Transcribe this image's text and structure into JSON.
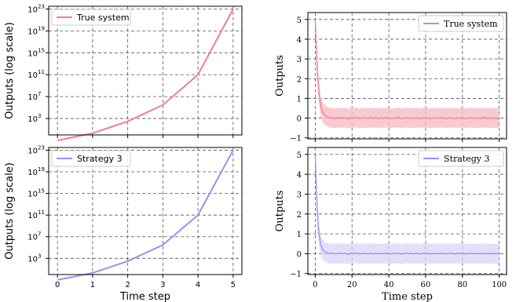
{
  "chart_data": [
    {
      "id": "top-left",
      "type": "line",
      "yscale": "log",
      "xlabel": "",
      "ylabel": "Outputs (log scale)",
      "xlim": [
        -0.25,
        5.25
      ],
      "ylim_exp": [
        0,
        23.5
      ],
      "x_ticks": [
        0,
        1,
        2,
        3,
        4,
        5
      ],
      "x_tick_labels": [
        "",
        "",
        "",
        "",
        "",
        ""
      ],
      "y_tick_exps": [
        3,
        7,
        11,
        15,
        19,
        23
      ],
      "y_tick_labels": [
        "10",
        "10",
        "10",
        "10",
        "10",
        "10"
      ],
      "y_tick_sups": [
        "3",
        "7",
        "11",
        "15",
        "19",
        "23"
      ],
      "grid": true,
      "legend": "top-left",
      "color": "#f07f8c",
      "series": [
        {
          "name": "True system",
          "x": [
            0,
            1,
            2,
            3,
            4,
            5
          ],
          "y": [
            0.1,
            2,
            300,
            300000,
            100000000000,
            1e+23
          ]
        }
      ]
    },
    {
      "id": "bottom-left",
      "type": "line",
      "yscale": "log",
      "xlabel": "Time step",
      "ylabel": "Outputs (log scale)",
      "xlim": [
        -0.25,
        5.25
      ],
      "ylim_exp": [
        0,
        23.5
      ],
      "x_ticks": [
        0,
        1,
        2,
        3,
        4,
        5
      ],
      "x_tick_labels": [
        "0",
        "1",
        "2",
        "3",
        "4",
        "5"
      ],
      "y_tick_exps": [
        3,
        7,
        11,
        15,
        19,
        23
      ],
      "y_tick_labels": [
        "10",
        "10",
        "10",
        "10",
        "10",
        "10"
      ],
      "y_tick_sups": [
        "3",
        "7",
        "11",
        "15",
        "19",
        "23"
      ],
      "grid": true,
      "legend": "top-left",
      "color": "#9b8ff0",
      "series": [
        {
          "name": "Strategy 3",
          "x": [
            0,
            1,
            2,
            3,
            4,
            5
          ],
          "y": [
            0.1,
            2,
            300,
            300000,
            100000000000,
            1e+23
          ]
        }
      ]
    },
    {
      "id": "top-right",
      "type": "line",
      "band": true,
      "yscale": "linear",
      "xlabel": "",
      "ylabel": "Outputs",
      "xlim": [
        -4,
        104
      ],
      "ylim": [
        -1.05,
        5.35
      ],
      "x_ticks": [
        0,
        20,
        40,
        60,
        80,
        100
      ],
      "x_tick_labels": [
        "",
        "",
        "",
        "",
        "",
        ""
      ],
      "y_ticks": [
        -1,
        0,
        1,
        2,
        3,
        4,
        5
      ],
      "y_tick_labels": [
        "−1",
        "0",
        "1",
        "2",
        "3",
        "4",
        "5"
      ],
      "grid": true,
      "legend": "top-right",
      "color": "#f07f8c",
      "band_color": "#f7b8c1",
      "series": [
        {
          "name": "True system",
          "x": [
            0,
            1,
            2,
            3,
            4,
            5,
            6,
            7,
            8,
            9,
            10,
            11,
            12,
            13,
            14,
            15,
            16,
            17,
            18,
            19,
            20,
            21,
            22,
            23,
            24,
            25,
            26,
            27,
            28,
            29,
            30,
            31,
            32,
            33,
            34,
            35,
            36,
            37,
            38,
            39,
            40,
            41,
            42,
            43,
            44,
            45,
            46,
            47,
            48,
            49,
            50,
            51,
            52,
            53,
            54,
            55,
            56,
            57,
            58,
            59,
            60,
            61,
            62,
            63,
            64,
            65,
            66,
            67,
            68,
            69,
            70,
            71,
            72,
            73,
            74,
            75,
            76,
            77,
            78,
            79,
            80,
            81,
            82,
            83,
            84,
            85,
            86,
            87,
            88,
            89,
            90,
            91,
            92,
            93,
            94,
            95,
            96,
            97,
            98,
            99,
            100
          ],
          "y": [
            5.0,
            2.65,
            1.3,
            0.6,
            0.3,
            0.18,
            0.1,
            0.05,
            0.0,
            0.02,
            0.01,
            -0.02,
            0.03,
            0.0,
            0.02,
            -0.01,
            0.03,
            0.0,
            -0.03,
            0.01,
            0.02,
            0.0,
            0.05,
            0.02,
            -0.03,
            0.0,
            0.01,
            0.02,
            0.0,
            -0.02,
            0.03,
            0.01,
            0.0,
            0.04,
            0.0,
            -0.02,
            0.02,
            0.0,
            0.01,
            0.03,
            0.0,
            -0.02,
            0.01,
            0.0,
            0.02,
            0.05,
            0.0,
            -0.02,
            0.0,
            0.03,
            0.01,
            0.0,
            0.02,
            -0.01,
            0.0,
            0.03,
            0.0,
            -0.02,
            0.01,
            0.02,
            0.0,
            0.03,
            -0.02,
            0.0,
            0.01,
            0.02,
            0.0,
            -0.01,
            0.03,
            0.0,
            0.02,
            -0.02,
            0.0,
            0.01,
            0.03,
            0.0,
            -0.02,
            0.01,
            0.0,
            0.02,
            0.03,
            0.0,
            -0.02,
            0.01,
            0.0,
            0.04,
            -0.01,
            0.0,
            0.02,
            0.0,
            -0.02,
            0.05,
            0.0,
            0.01,
            -0.01,
            0.02,
            0.0,
            0.01,
            -0.02,
            0.0,
            0.02
          ],
          "lower": [
            5.0,
            2.0,
            0.8,
            0.1,
            -0.2,
            -0.33,
            -0.4,
            -0.45,
            -0.5,
            -0.48,
            -0.5,
            -0.52,
            -0.47,
            -0.5,
            -0.48,
            -0.51,
            -0.47,
            -0.5,
            -0.53,
            -0.49,
            -0.48,
            -0.5,
            -0.45,
            -0.48,
            -0.53,
            -0.5,
            -0.49,
            -0.48,
            -0.5,
            -0.52,
            -0.47,
            -0.49,
            -0.5,
            -0.46,
            -0.5,
            -0.52,
            -0.48,
            -0.5,
            -0.49,
            -0.47,
            -0.5,
            -0.52,
            -0.49,
            -0.5,
            -0.48,
            -0.45,
            -0.5,
            -0.52,
            -0.5,
            -0.47,
            -0.49,
            -0.5,
            -0.48,
            -0.51,
            -0.5,
            -0.47,
            -0.5,
            -0.52,
            -0.49,
            -0.48,
            -0.5,
            -0.47,
            -0.52,
            -0.5,
            -0.49,
            -0.48,
            -0.5,
            -0.51,
            -0.47,
            -0.5,
            -0.48,
            -0.52,
            -0.5,
            -0.49,
            -0.47,
            -0.5,
            -0.52,
            -0.49,
            -0.5,
            -0.48,
            -0.47,
            -0.5,
            -0.52,
            -0.49,
            -0.5,
            -0.46,
            -0.51,
            -0.5,
            -0.48,
            -0.5,
            -0.52,
            -0.45,
            -0.5,
            -0.49,
            -0.51,
            -0.48,
            -0.5,
            -0.49,
            -0.52,
            -0.5,
            -0.48
          ],
          "upper": [
            5.0,
            3.3,
            1.8,
            1.1,
            0.8,
            0.69,
            0.6,
            0.55,
            0.5,
            0.52,
            0.51,
            0.48,
            0.53,
            0.5,
            0.52,
            0.49,
            0.53,
            0.5,
            0.47,
            0.51,
            0.52,
            0.5,
            0.55,
            0.52,
            0.47,
            0.5,
            0.51,
            0.52,
            0.5,
            0.48,
            0.53,
            0.51,
            0.5,
            0.54,
            0.5,
            0.48,
            0.52,
            0.5,
            0.51,
            0.53,
            0.5,
            0.48,
            0.51,
            0.5,
            0.52,
            0.55,
            0.5,
            0.48,
            0.5,
            0.53,
            0.51,
            0.5,
            0.52,
            0.49,
            0.5,
            0.53,
            0.5,
            0.48,
            0.51,
            0.52,
            0.5,
            0.53,
            0.48,
            0.5,
            0.51,
            0.52,
            0.5,
            0.49,
            0.53,
            0.5,
            0.52,
            0.48,
            0.5,
            0.51,
            0.53,
            0.5,
            0.48,
            0.51,
            0.5,
            0.52,
            0.53,
            0.5,
            0.48,
            0.51,
            0.5,
            0.54,
            0.49,
            0.5,
            0.52,
            0.5,
            0.48,
            0.55,
            0.5,
            0.51,
            0.49,
            0.52,
            0.5,
            0.51,
            0.48,
            0.5,
            0.52
          ]
        }
      ]
    },
    {
      "id": "bottom-right",
      "type": "line",
      "band": true,
      "yscale": "linear",
      "xlabel": "Time step",
      "ylabel": "Outputs",
      "xlim": [
        -4,
        104
      ],
      "ylim": [
        -1.05,
        5.35
      ],
      "x_ticks": [
        0,
        20,
        40,
        60,
        80,
        100
      ],
      "x_tick_labels": [
        "0",
        "20",
        "40",
        "60",
        "80",
        "100"
      ],
      "y_ticks": [
        -1,
        0,
        1,
        2,
        3,
        4,
        5
      ],
      "y_tick_labels": [
        "−1",
        "0",
        "1",
        "2",
        "3",
        "4",
        "5"
      ],
      "grid": true,
      "legend": "top-right",
      "color": "#9b8ff0",
      "band_color": "#d9d3f7",
      "series": [
        {
          "name": "Strategy 3",
          "x": [
            0,
            1,
            2,
            3,
            4,
            5,
            6,
            7,
            8,
            9,
            10,
            11,
            12,
            13,
            14,
            15,
            16,
            17,
            18,
            19,
            20,
            21,
            22,
            23,
            24,
            25,
            26,
            27,
            28,
            29,
            30,
            31,
            32,
            33,
            34,
            35,
            36,
            37,
            38,
            39,
            40,
            41,
            42,
            43,
            44,
            45,
            46,
            47,
            48,
            49,
            50,
            51,
            52,
            53,
            54,
            55,
            56,
            57,
            58,
            59,
            60,
            61,
            62,
            63,
            64,
            65,
            66,
            67,
            68,
            69,
            70,
            71,
            72,
            73,
            74,
            75,
            76,
            77,
            78,
            79,
            80,
            81,
            82,
            83,
            84,
            85,
            86,
            87,
            88,
            89,
            90,
            91,
            92,
            93,
            94,
            95,
            96,
            97,
            98,
            99,
            100
          ],
          "y": [
            5.0,
            2.3,
            1.0,
            0.45,
            0.2,
            0.12,
            0.06,
            0.03,
            0.0,
            0.02,
            0.01,
            -0.02,
            0.02,
            0.0,
            0.03,
            -0.01,
            0.02,
            0.0,
            -0.03,
            0.01,
            0.02,
            0.0,
            0.03,
            0.02,
            -0.02,
            0.0,
            0.01,
            0.02,
            0.0,
            -0.02,
            0.03,
            0.01,
            0.0,
            0.02,
            0.0,
            -0.02,
            0.02,
            0.0,
            0.01,
            0.03,
            0.0,
            -0.02,
            0.01,
            0.0,
            0.02,
            0.03,
            0.0,
            -0.02,
            0.0,
            0.03,
            0.01,
            0.0,
            0.02,
            -0.01,
            0.0,
            0.03,
            0.0,
            -0.02,
            0.01,
            0.02,
            0.0,
            0.03,
            -0.02,
            0.0,
            0.01,
            0.02,
            0.0,
            -0.01,
            0.03,
            0.0,
            0.02,
            -0.02,
            0.0,
            0.01,
            0.03,
            0.0,
            -0.02,
            0.01,
            0.0,
            0.02,
            0.03,
            0.0,
            -0.02,
            0.01,
            0.0,
            0.03,
            -0.01,
            0.0,
            0.02,
            0.0,
            -0.02,
            0.03,
            0.0,
            0.01,
            -0.01,
            0.02,
            0.0,
            0.01,
            -0.02,
            0.0,
            0.02
          ],
          "lower": [
            5.0,
            1.6,
            0.5,
            -0.05,
            -0.3,
            -0.38,
            -0.44,
            -0.47,
            -0.5,
            -0.48,
            -0.5,
            -0.52,
            -0.48,
            -0.5,
            -0.47,
            -0.51,
            -0.48,
            -0.5,
            -0.53,
            -0.49,
            -0.48,
            -0.5,
            -0.47,
            -0.48,
            -0.52,
            -0.5,
            -0.49,
            -0.48,
            -0.5,
            -0.52,
            -0.47,
            -0.49,
            -0.5,
            -0.48,
            -0.5,
            -0.52,
            -0.48,
            -0.5,
            -0.49,
            -0.47,
            -0.5,
            -0.52,
            -0.49,
            -0.5,
            -0.48,
            -0.47,
            -0.5,
            -0.52,
            -0.5,
            -0.47,
            -0.49,
            -0.5,
            -0.48,
            -0.51,
            -0.5,
            -0.47,
            -0.5,
            -0.52,
            -0.49,
            -0.48,
            -0.5,
            -0.47,
            -0.52,
            -0.5,
            -0.49,
            -0.48,
            -0.5,
            -0.51,
            -0.47,
            -0.5,
            -0.48,
            -0.52,
            -0.5,
            -0.49,
            -0.47,
            -0.5,
            -0.52,
            -0.49,
            -0.5,
            -0.48,
            -0.47,
            -0.5,
            -0.52,
            -0.49,
            -0.5,
            -0.47,
            -0.51,
            -0.5,
            -0.48,
            -0.5,
            -0.52,
            -0.47,
            -0.5,
            -0.49,
            -0.51,
            -0.48,
            -0.5,
            -0.49,
            -0.52,
            -0.5,
            -0.48
          ],
          "upper": [
            5.0,
            3.0,
            1.5,
            0.95,
            0.7,
            0.62,
            0.56,
            0.53,
            0.5,
            0.52,
            0.51,
            0.48,
            0.52,
            0.5,
            0.53,
            0.49,
            0.52,
            0.5,
            0.47,
            0.51,
            0.52,
            0.5,
            0.53,
            0.52,
            0.48,
            0.5,
            0.51,
            0.52,
            0.5,
            0.48,
            0.53,
            0.51,
            0.5,
            0.52,
            0.5,
            0.48,
            0.52,
            0.5,
            0.51,
            0.53,
            0.5,
            0.48,
            0.51,
            0.5,
            0.52,
            0.53,
            0.5,
            0.48,
            0.5,
            0.53,
            0.51,
            0.5,
            0.52,
            0.49,
            0.5,
            0.53,
            0.5,
            0.48,
            0.51,
            0.52,
            0.5,
            0.53,
            0.48,
            0.5,
            0.51,
            0.52,
            0.5,
            0.49,
            0.53,
            0.5,
            0.52,
            0.48,
            0.5,
            0.51,
            0.53,
            0.5,
            0.48,
            0.51,
            0.5,
            0.52,
            0.53,
            0.5,
            0.48,
            0.51,
            0.5,
            0.53,
            0.49,
            0.5,
            0.52,
            0.5,
            0.48,
            0.53,
            0.5,
            0.51,
            0.49,
            0.52,
            0.5,
            0.51,
            0.48,
            0.5,
            0.52
          ]
        }
      ]
    }
  ]
}
